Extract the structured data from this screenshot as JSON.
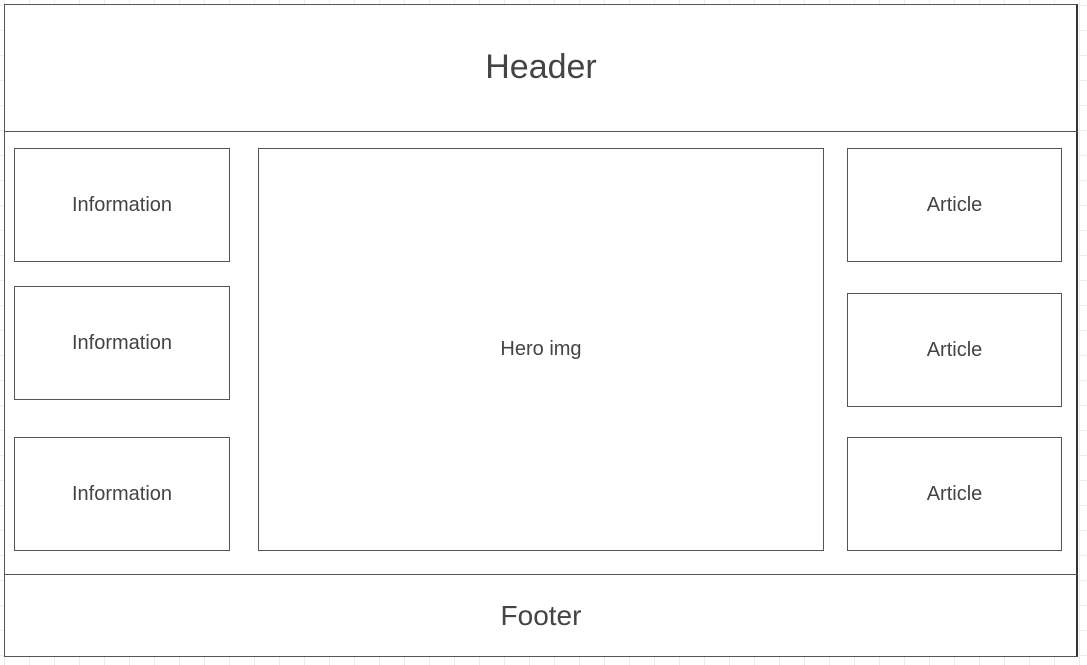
{
  "header": {
    "label": "Header"
  },
  "footer": {
    "label": "Footer"
  },
  "information_boxes": [
    {
      "label": "Information"
    },
    {
      "label": "Information"
    },
    {
      "label": "Information"
    }
  ],
  "hero": {
    "label": "Hero img"
  },
  "article_boxes": [
    {
      "label": "Article"
    },
    {
      "label": "Article"
    },
    {
      "label": "Article"
    }
  ]
}
